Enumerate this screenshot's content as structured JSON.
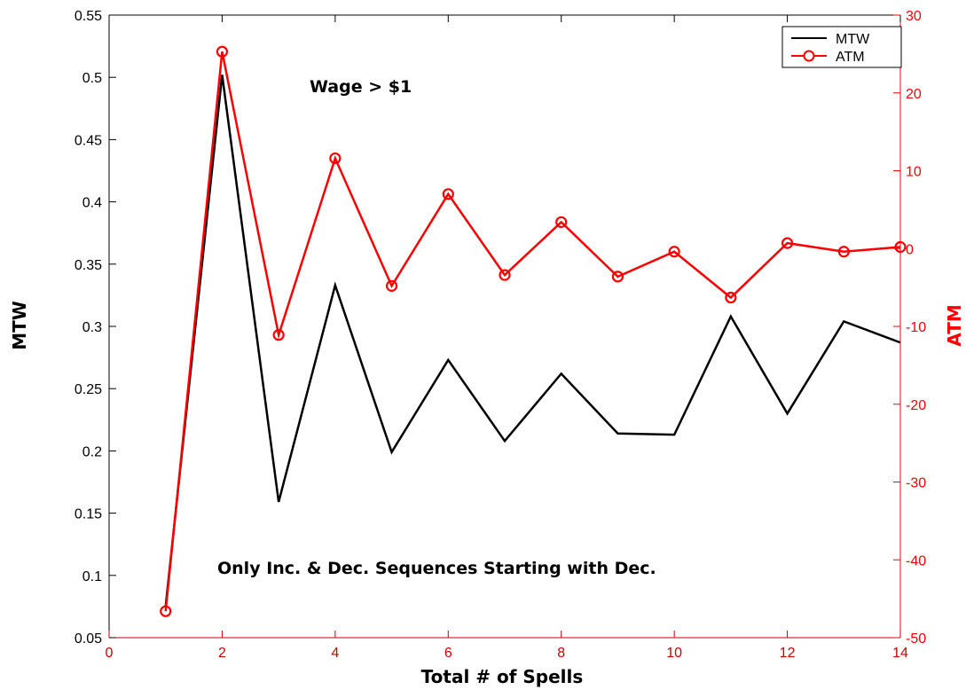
{
  "colors": {
    "mtw": "#000000",
    "atm": "#ff0000",
    "left_axis": "#000000",
    "right_axis": "#ff0000",
    "bottom_axis": "#cc0000",
    "background": "#ffffff"
  },
  "chart_data": {
    "type": "line",
    "title": "",
    "xlabel": "Total # of Spells",
    "ylabel_left": "MTW",
    "ylabel_right": "ATM",
    "xlim": [
      0,
      14
    ],
    "ylim_left": [
      0.05,
      0.55
    ],
    "ylim_right": [
      -50,
      30
    ],
    "x_ticks": [
      "0",
      "2",
      "4",
      "6",
      "8",
      "10",
      "12",
      "14"
    ],
    "y_left_ticks": [
      "0.05",
      "0.1",
      "0.15",
      "0.2",
      "0.25",
      "0.3",
      "0.35",
      "0.4",
      "0.45",
      "0.5",
      "0.55"
    ],
    "y_right_ticks": [
      "-50",
      "-40",
      "-30",
      "-20",
      "-10",
      "0",
      "10",
      "20",
      "30"
    ],
    "annotations": [
      "Wage > $1",
      "Only Inc. & Dec. Sequences Starting with Dec."
    ],
    "legend_position": "top-right",
    "grid": false,
    "series": [
      {
        "name": "MTW",
        "axis": "left",
        "marker": "none",
        "x": [
          1,
          2,
          3,
          4,
          5,
          6,
          7,
          8,
          9,
          10,
          11,
          12,
          13,
          14
        ],
        "values": [
          0.075,
          0.502,
          0.159,
          0.333,
          0.199,
          0.273,
          0.208,
          0.262,
          0.214,
          0.213,
          0.308,
          0.23,
          0.304,
          0.287
        ]
      },
      {
        "name": "ATM",
        "axis": "right",
        "marker": "circle",
        "x": [
          1,
          2,
          3,
          4,
          5,
          6,
          7,
          8,
          9,
          10,
          11,
          12,
          13,
          14
        ],
        "values": [
          -46.6,
          25.3,
          -11.1,
          11.6,
          -4.8,
          7.0,
          -3.4,
          3.4,
          -3.6,
          -0.4,
          -6.3,
          0.7,
          -0.4,
          0.2
        ]
      }
    ]
  }
}
